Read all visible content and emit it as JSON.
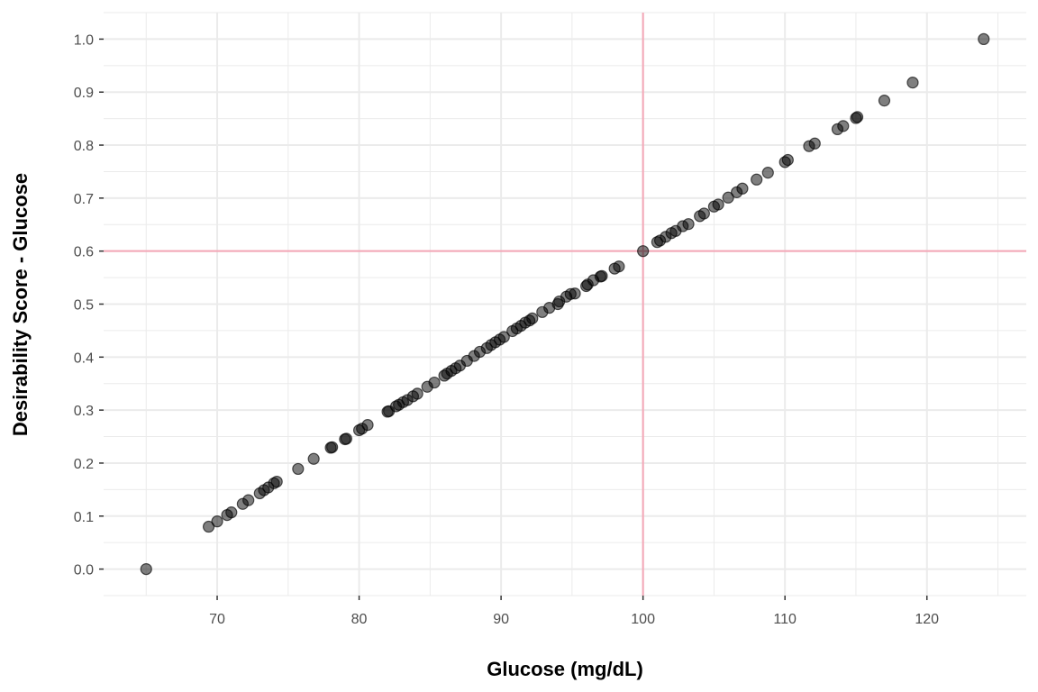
{
  "chart_data": {
    "type": "scatter",
    "title": "",
    "xlabel": "Glucose (mg/dL)",
    "ylabel": "Desirability Score - Glucose",
    "xlim": [
      62,
      127
    ],
    "ylim": [
      -0.05,
      1.05
    ],
    "x_ticks": [
      70,
      80,
      90,
      100,
      110,
      120
    ],
    "x_tick_labels": [
      "70",
      "80",
      "90",
      "100",
      "110",
      "120"
    ],
    "y_ticks": [
      0.0,
      0.1,
      0.2,
      0.3,
      0.4,
      0.5,
      0.6,
      0.7,
      0.8,
      0.9,
      1.0
    ],
    "y_tick_labels": [
      "0.0",
      "0.1",
      "0.2",
      "0.3",
      "0.4",
      "0.5",
      "0.6",
      "0.7",
      "0.8",
      "0.9",
      "1.0"
    ],
    "grid": true,
    "reference_lines": {
      "x": 100,
      "y": 0.6,
      "color": "#f4a6b6"
    },
    "point_color": "#000000",
    "point_alpha": 0.5,
    "points": [
      [
        65,
        0.0
      ],
      [
        69.4,
        0.08
      ],
      [
        70,
        0.09
      ],
      [
        70.7,
        0.102
      ],
      [
        71,
        0.107
      ],
      [
        71.8,
        0.123
      ],
      [
        72.2,
        0.13
      ],
      [
        73,
        0.143
      ],
      [
        73.3,
        0.149
      ],
      [
        73.6,
        0.154
      ],
      [
        74,
        0.162
      ],
      [
        74.2,
        0.165
      ],
      [
        75.7,
        0.189
      ],
      [
        76.8,
        0.208
      ],
      [
        78,
        0.229
      ],
      [
        78.1,
        0.23
      ],
      [
        79,
        0.245
      ],
      [
        79.1,
        0.246
      ],
      [
        80,
        0.262
      ],
      [
        80.2,
        0.265
      ],
      [
        80.6,
        0.272
      ],
      [
        82,
        0.297
      ],
      [
        82.1,
        0.298
      ],
      [
        82.6,
        0.307
      ],
      [
        82.8,
        0.31
      ],
      [
        83.1,
        0.315
      ],
      [
        83.4,
        0.319
      ],
      [
        83.8,
        0.326
      ],
      [
        84.1,
        0.331
      ],
      [
        84.8,
        0.344
      ],
      [
        85.3,
        0.352
      ],
      [
        86,
        0.365
      ],
      [
        86.2,
        0.369
      ],
      [
        86.5,
        0.374
      ],
      [
        86.8,
        0.379
      ],
      [
        87.1,
        0.384
      ],
      [
        87.6,
        0.393
      ],
      [
        88.1,
        0.402
      ],
      [
        88.5,
        0.41
      ],
      [
        89,
        0.417
      ],
      [
        89.3,
        0.423
      ],
      [
        89.6,
        0.428
      ],
      [
        89.9,
        0.433
      ],
      [
        90.2,
        0.438
      ],
      [
        90.8,
        0.449
      ],
      [
        91.1,
        0.454
      ],
      [
        91.4,
        0.459
      ],
      [
        91.7,
        0.465
      ],
      [
        92,
        0.469
      ],
      [
        92.2,
        0.473
      ],
      [
        92.9,
        0.485
      ],
      [
        93.4,
        0.493
      ],
      [
        94,
        0.5
      ],
      [
        94.1,
        0.505
      ],
      [
        94.6,
        0.514
      ],
      [
        94.9,
        0.519
      ],
      [
        95.2,
        0.52
      ],
      [
        96,
        0.534
      ],
      [
        96.1,
        0.537
      ],
      [
        96.5,
        0.545
      ],
      [
        97,
        0.552
      ],
      [
        97.1,
        0.553
      ],
      [
        98,
        0.567
      ],
      [
        98.3,
        0.571
      ],
      [
        100,
        0.6
      ],
      [
        101,
        0.617
      ],
      [
        101.2,
        0.62
      ],
      [
        101.6,
        0.627
      ],
      [
        102,
        0.634
      ],
      [
        102.3,
        0.638
      ],
      [
        102.8,
        0.647
      ],
      [
        103.2,
        0.651
      ],
      [
        104,
        0.666
      ],
      [
        104.3,
        0.671
      ],
      [
        105,
        0.684
      ],
      [
        105.3,
        0.688
      ],
      [
        106,
        0.701
      ],
      [
        106.6,
        0.711
      ],
      [
        107,
        0.718
      ],
      [
        108,
        0.735
      ],
      [
        108.8,
        0.748
      ],
      [
        110,
        0.768
      ],
      [
        110.2,
        0.772
      ],
      [
        111.7,
        0.798
      ],
      [
        112.1,
        0.803
      ],
      [
        113.7,
        0.83
      ],
      [
        114.1,
        0.836
      ],
      [
        115,
        0.851
      ],
      [
        115.1,
        0.853
      ],
      [
        117,
        0.884
      ],
      [
        119,
        0.918
      ],
      [
        124,
        1.0
      ]
    ]
  }
}
